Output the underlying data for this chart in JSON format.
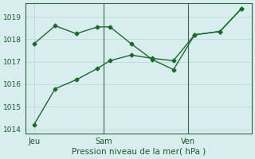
{
  "xlabel": "Pression niveau de la mer( hPa )",
  "bg_color": "#d8eeee",
  "grid_color": "#c4dcdc",
  "line_color": "#1a6b2a",
  "ylim": [
    1013.8,
    1019.6
  ],
  "yticks": [
    1014,
    1015,
    1016,
    1017,
    1018,
    1019
  ],
  "ytick_fontsize": 6.5,
  "vlines_x": [
    3.5,
    7.5
  ],
  "xtick_positions": [
    0.2,
    3.5,
    7.5
  ],
  "xtick_labels": [
    "Jeu",
    "Sam",
    "Ven"
  ],
  "series1_x": [
    0.2,
    1.2,
    2.2,
    3.2,
    3.8,
    4.8,
    5.8,
    6.8,
    7.8,
    9.0,
    10.0
  ],
  "series1_y": [
    1017.8,
    1018.6,
    1018.25,
    1018.55,
    1018.55,
    1017.8,
    1017.1,
    1016.65,
    1018.2,
    1018.35,
    1019.35
  ],
  "series2_x": [
    0.2,
    1.2,
    2.2,
    3.2,
    3.8,
    4.8,
    5.8,
    6.8,
    7.8,
    9.0,
    10.0
  ],
  "series2_y": [
    1014.2,
    1015.8,
    1016.2,
    1016.7,
    1017.05,
    1017.3,
    1017.15,
    1017.05,
    1018.2,
    1018.35,
    1019.35
  ],
  "xlim": [
    -0.2,
    10.5
  ],
  "marker": "D",
  "marker_size": 2.5,
  "linewidth": 1.0,
  "xlabel_fontsize": 7.5,
  "xtick_fontsize": 7
}
